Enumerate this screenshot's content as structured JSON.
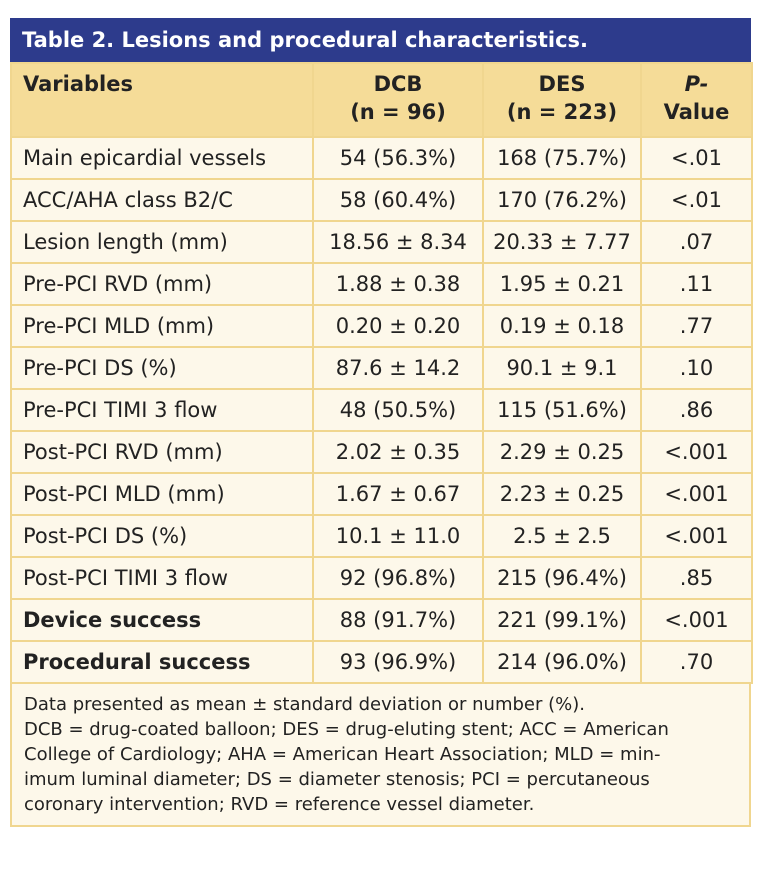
{
  "title": "Table 2. Lesions and procedural characteristics.",
  "header": {
    "variables": "Variables",
    "dcb": [
      "DCB",
      "(n = 96)"
    ],
    "des": [
      "DES",
      "(n = 223)"
    ],
    "p": [
      "P-",
      "Value"
    ]
  },
  "rows": [
    [
      "Main epicardial vessels",
      "54 (56.3%)",
      "168 (75.7%)",
      "<.01"
    ],
    [
      "ACC/AHA class B2/C",
      "58 (60.4%)",
      "170 (76.2%)",
      "<.01"
    ],
    [
      "Lesion length (mm)",
      "18.56 ± 8.34",
      "20.33 ± 7.77",
      ".07"
    ],
    [
      "Pre-PCI RVD (mm)",
      "1.88 ± 0.38",
      "1.95 ± 0.21",
      ".11"
    ],
    [
      "Pre-PCI MLD (mm)",
      "0.20 ± 0.20",
      "0.19 ± 0.18",
      ".77"
    ],
    [
      "Pre-PCI DS (%)",
      "87.6 ± 14.2",
      "90.1 ± 9.1",
      ".10"
    ],
    [
      "Pre-PCI TIMI 3 flow",
      "48 (50.5%)",
      "115 (51.6%)",
      ".86"
    ],
    [
      "Post-PCI RVD (mm)",
      "2.02 ± 0.35",
      "2.29 ± 0.25",
      "<.001"
    ],
    [
      "Post-PCI MLD (mm)",
      "1.67 ± 0.67",
      "2.23 ± 0.25",
      "<.001"
    ],
    [
      "Post-PCI DS (%)",
      "10.1 ± 11.0",
      "2.5 ± 2.5",
      "<.001"
    ],
    [
      "Post-PCI TIMI 3 flow",
      "92 (96.8%)",
      "215 (96.4%)",
      ".85"
    ],
    [
      "Device success",
      "88 (91.7%)",
      "221 (99.1%)",
      "<.001"
    ],
    [
      "Procedural success",
      "93 (96.9%)",
      "214 (96.0%)",
      ".70"
    ]
  ],
  "footnote": [
    "Data presented as mean ± standard deviation or number (%).",
    "DCB = drug-coated balloon; DES = drug-eluting stent; ACC = American",
    "College of Cardiology; AHA = American Heart Association; MLD = min-",
    "imum luminal diameter; DS = diameter stenosis; PCI = percutaneous",
    "coronary intervention; RVD = reference vessel diameter."
  ]
}
